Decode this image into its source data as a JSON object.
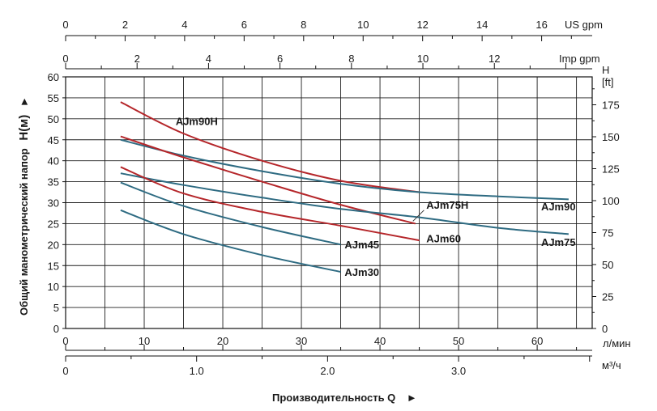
{
  "chart_data": {
    "type": "line",
    "x_label": "Производительность Q",
    "x_label_arrow": "►",
    "y_label": "Общий манометрический напор",
    "y_label_symbol": "H(м)",
    "y_label_arrow": "►",
    "grid": true,
    "axes": {
      "bottom_lpm": {
        "unit": "л/мин",
        "ticks": [
          0,
          10,
          20,
          30,
          40,
          50,
          60
        ],
        "range": [
          0,
          67
        ]
      },
      "bottom_m3h": {
        "unit": "м³/ч",
        "ticks": [
          "0",
          "1.0",
          "2.0",
          "3.0"
        ],
        "tick_values": [
          0,
          1,
          2,
          3
        ]
      },
      "top_usgpm": {
        "unit": "US gpm",
        "ticks": [
          0,
          2,
          4,
          6,
          8,
          10,
          12,
          14,
          16
        ]
      },
      "top_impgpm": {
        "unit": "Imp gpm",
        "ticks": [
          0,
          2,
          4,
          6,
          8,
          10,
          12
        ]
      },
      "left_m": {
        "ticks": [
          0,
          5,
          10,
          15,
          20,
          25,
          30,
          35,
          40,
          45,
          50,
          55,
          60
        ],
        "range": [
          0,
          60
        ]
      },
      "right_ft": {
        "title": "H",
        "unit": "[ft]",
        "ticks": [
          0,
          25,
          50,
          75,
          100,
          125,
          150,
          175
        ]
      }
    },
    "series": [
      {
        "name": "AJm90H",
        "color": "#b5262a",
        "x": [
          7,
          15,
          25,
          35,
          45
        ],
        "y": [
          54,
          46.5,
          40,
          35.2,
          32.5
        ]
      },
      {
        "name": "AJm90",
        "color": "#2e6b82",
        "x": [
          7,
          15,
          25,
          35,
          45,
          55,
          64
        ],
        "y": [
          45,
          41.2,
          37.5,
          34.5,
          32.5,
          31.5,
          30.8
        ]
      },
      {
        "name": "AJm75H",
        "color": "#b5262a",
        "x": [
          7,
          15,
          25,
          35,
          44.5
        ],
        "y": [
          45.8,
          40.8,
          35,
          29.5,
          25
        ]
      },
      {
        "name": "AJm75",
        "color": "#2e6b82",
        "x": [
          7,
          15,
          25,
          35,
          45,
          55,
          64
        ],
        "y": [
          37,
          34.2,
          31.2,
          28.5,
          26.5,
          24,
          22.5
        ]
      },
      {
        "name": "AJm60",
        "color": "#b5262a",
        "x": [
          7,
          15,
          25,
          35,
          45
        ],
        "y": [
          38.5,
          32.2,
          27.8,
          24.5,
          21
        ]
      },
      {
        "name": "AJm45",
        "color": "#2e6b82",
        "x": [
          7,
          15,
          25,
          35
        ],
        "y": [
          34.8,
          29.2,
          24.2,
          20
        ]
      },
      {
        "name": "AJm30",
        "color": "#2e6b82",
        "x": [
          7,
          15,
          25,
          35
        ],
        "y": [
          28.2,
          22.5,
          17.5,
          13.5
        ]
      }
    ]
  }
}
